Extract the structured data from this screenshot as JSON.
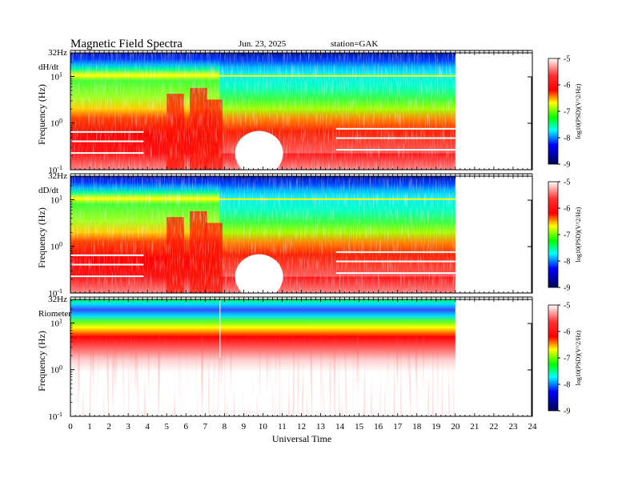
{
  "header": {
    "title": "Magnetic  Field  Spectra",
    "date": "Jun. 23, 2025",
    "station": "station=GAK"
  },
  "chart_data": {
    "type": "heatmap",
    "x_axis": {
      "label": "Universal Time",
      "range": [
        0,
        24
      ],
      "ticks": [
        "0",
        "1",
        "2",
        "3",
        "4",
        "5",
        "6",
        "7",
        "8",
        "9",
        "10",
        "11",
        "12",
        "13",
        "14",
        "15",
        "16",
        "17",
        "18",
        "19",
        "20",
        "21",
        "22",
        "23",
        "24"
      ],
      "data_end_hour": 20
    },
    "y_axis": {
      "label": "Frequency  (Hz)",
      "scale": "log",
      "range_hz": [
        0.1,
        32
      ]
    },
    "colorbar": {
      "label": "log10(PSD)(V^2/Hz)",
      "range": [
        -9,
        -5
      ],
      "ticks": [
        "-5",
        "-6",
        "-7",
        "-8",
        "-9"
      ],
      "colors": [
        "#ffffff",
        "#ff0000",
        "#ffff00",
        "#00ff00",
        "#00ffff",
        "#0000ff",
        "#000066"
      ]
    },
    "panels": [
      {
        "name": "dH/dt",
        "top_label": "32Hz",
        "ytick_labels": [
          "10^1",
          "10^0",
          "10^-1"
        ]
      },
      {
        "name": "dD/dt",
        "top_label": "32Hz",
        "ytick_labels": [
          "10^1",
          "10^0",
          "10^-1"
        ]
      },
      {
        "name": "Riometer",
        "top_label": "32Hz",
        "ytick_labels": [
          "10^1",
          "10^0",
          "10^-1"
        ]
      }
    ]
  }
}
